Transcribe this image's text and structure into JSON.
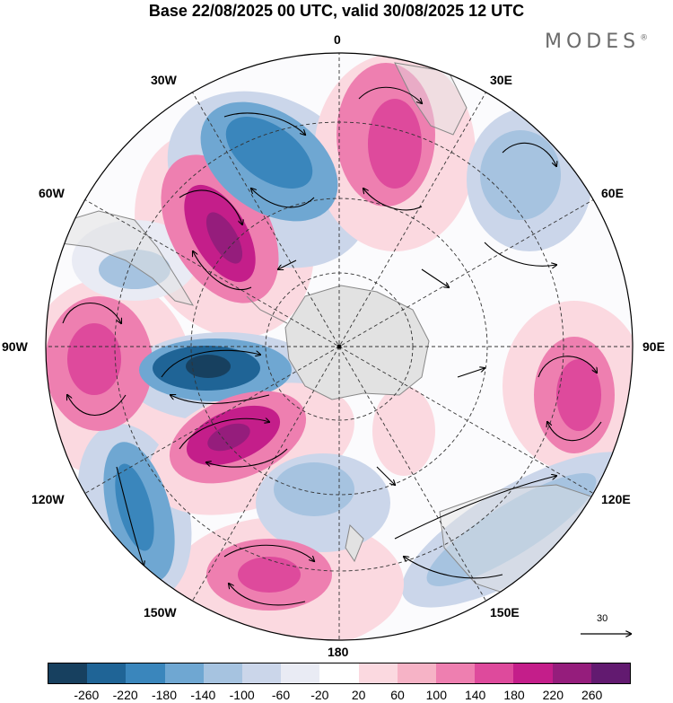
{
  "header": {
    "title": "Base 22/08/2025 00 UTC, valid 30/08/2025 12 UTC",
    "brand": "MODES",
    "brand_mark": "®"
  },
  "map": {
    "projection": "south polar stereographic",
    "longitude_labels": {
      "top": "0",
      "top_right": "30E",
      "upper_right": "60E",
      "right": "90E",
      "lower_right": "120E",
      "bottom_right": "150E",
      "bottom": "180",
      "bottom_left": "150W",
      "lower_left": "120W",
      "left": "90W",
      "upper_left": "60W",
      "top_left": "30W"
    },
    "reference_vector": "30"
  },
  "colorbar": {
    "colors": [
      "#17405f",
      "#1f6496",
      "#3a86bc",
      "#6fa7d2",
      "#a6c3e0",
      "#cbd6ea",
      "#e9ebf4",
      "#ffffff",
      "#fbd9e0",
      "#f6b3c6",
      "#ee7fb0",
      "#de4a9c",
      "#c41e8a",
      "#951d7c",
      "#621a70"
    ],
    "tick_labels": [
      "-260",
      "-220",
      "-180",
      "-140",
      "-100",
      "-60",
      "-20",
      "20",
      "60",
      "100",
      "140",
      "180",
      "220",
      "260"
    ]
  }
}
